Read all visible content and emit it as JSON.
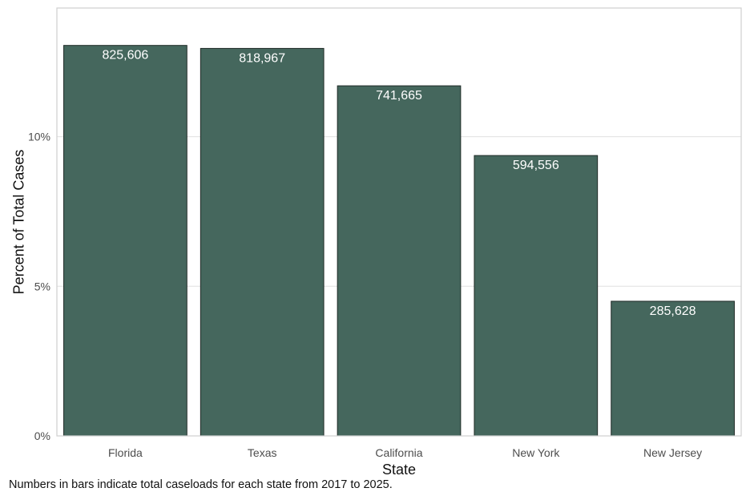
{
  "chart_data": {
    "type": "bar",
    "categories": [
      "Florida",
      "Texas",
      "California",
      "New York",
      "New Jersey"
    ],
    "values": [
      13.05,
      12.95,
      11.7,
      9.37,
      4.5
    ],
    "bar_labels": [
      "825,606",
      "818,967",
      "741,665",
      "594,556",
      "285,628"
    ],
    "xlabel": "State",
    "ylabel": "Percent of Total Cases",
    "ylim": [
      0,
      14.3
    ],
    "yticks": [
      0,
      5,
      10
    ],
    "ytick_labels": [
      "0%",
      "5%",
      "10%"
    ],
    "grid": true,
    "legend": "none",
    "caption": "Numbers in bars indicate total caseloads for each state from 2017 to 2025.",
    "colors": {
      "bar_fill": "#45675d",
      "bar_stroke": "#1f2a26",
      "grid": "#e0e0e0",
      "panel_border": "#cfcfcf",
      "bar_label_text": "#ffffff"
    }
  }
}
